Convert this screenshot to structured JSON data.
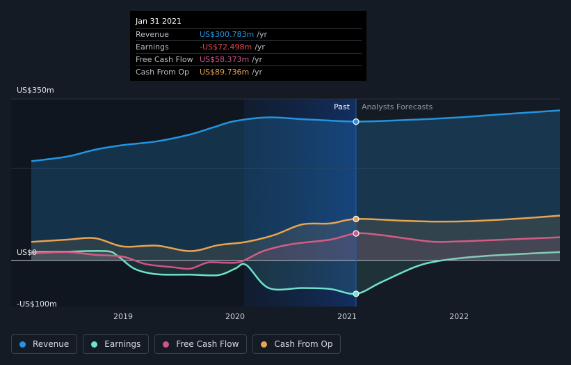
{
  "chart_data": {
    "type": "line",
    "title": "",
    "y_axis": {
      "ticks": [
        "US$350m",
        "US$0",
        "-US$100m"
      ],
      "ylim": [
        -100,
        350
      ]
    },
    "x_axis": {
      "ticks": [
        {
          "label": "2019",
          "x": 2019
        },
        {
          "label": "2020",
          "x": 2020
        },
        {
          "label": "2021",
          "x": 2021
        },
        {
          "label": "2022",
          "x": 2022
        }
      ],
      "xlim": [
        2018.0,
        2022.9
      ]
    },
    "divider_x": 2021.08,
    "highlight_start": 2020.08,
    "labels": {
      "past": "Past",
      "forecast": "Analysts Forecasts"
    },
    "series": [
      {
        "name": "Revenue",
        "color": "#2394df",
        "x": [
          2018.18,
          2018.5,
          2018.75,
          2019.0,
          2019.3,
          2019.6,
          2019.8,
          2020.0,
          2020.3,
          2020.6,
          2020.85,
          2021.08,
          2021.3,
          2021.6,
          2022.0,
          2022.4,
          2022.9
        ],
        "values": [
          215,
          225,
          240,
          250,
          258,
          273,
          288,
          302,
          310,
          306,
          303,
          300.783,
          302,
          305,
          310,
          317,
          325
        ]
      },
      {
        "name": "Earnings",
        "color": "#6ee2cc",
        "x": [
          2018.18,
          2018.5,
          2018.85,
          2018.95,
          2019.1,
          2019.3,
          2019.6,
          2019.85,
          2020.0,
          2020.1,
          2020.3,
          2020.6,
          2020.85,
          2021.08,
          2021.3,
          2021.6,
          2021.8,
          2022.1,
          2022.4,
          2022.9
        ],
        "values": [
          18,
          19,
          20,
          10,
          -18,
          -30,
          -31,
          -32,
          -18,
          -10,
          -60,
          -60,
          -62,
          -72.498,
          -48,
          -15,
          -2,
          7,
          12,
          18
        ]
      },
      {
        "name": "Free Cash Flow",
        "color": "#d1538b",
        "x": [
          2018.18,
          2018.5,
          2018.75,
          2019.0,
          2019.2,
          2019.45,
          2019.6,
          2019.75,
          2019.9,
          2020.05,
          2020.25,
          2020.5,
          2020.85,
          2021.08,
          2021.3,
          2021.6,
          2021.8,
          2022.1,
          2022.5,
          2022.9
        ],
        "values": [
          15,
          18,
          12,
          8,
          -8,
          -15,
          -18,
          -5,
          -5,
          -3,
          20,
          35,
          45,
          58.373,
          55,
          45,
          40,
          42,
          46,
          50
        ]
      },
      {
        "name": "Cash From Op",
        "color": "#e8a450",
        "x": [
          2018.18,
          2018.5,
          2018.75,
          2019.0,
          2019.3,
          2019.6,
          2019.85,
          2020.1,
          2020.35,
          2020.6,
          2020.85,
          2021.08,
          2021.5,
          2021.8,
          2022.1,
          2022.5,
          2022.9
        ],
        "values": [
          40,
          45,
          48,
          30,
          32,
          20,
          33,
          40,
          55,
          78,
          80,
          89.736,
          86,
          84,
          85,
          90,
          97
        ]
      }
    ],
    "markers": [
      {
        "series": "Revenue",
        "x": 2021.08,
        "value": 300.783
      },
      {
        "series": "Earnings",
        "x": 2021.08,
        "value": -72.498
      },
      {
        "series": "Free Cash Flow",
        "x": 2021.08,
        "value": 58.373
      },
      {
        "series": "Cash From Op",
        "x": 2021.08,
        "value": 89.736
      }
    ]
  },
  "tooltip": {
    "date": "Jan 31 2021",
    "rows": [
      {
        "label": "Revenue",
        "value": "US$300.783m",
        "unit": "/yr",
        "color": "#2394df"
      },
      {
        "label": "Earnings",
        "value": "-US$72.498m",
        "unit": "/yr",
        "color": "#e5484d"
      },
      {
        "label": "Free Cash Flow",
        "value": "US$58.373m",
        "unit": "/yr",
        "color": "#d1538b"
      },
      {
        "label": "Cash From Op",
        "value": "US$89.736m",
        "unit": "/yr",
        "color": "#e8a450"
      }
    ]
  },
  "legend": [
    {
      "label": "Revenue",
      "color": "#2394df"
    },
    {
      "label": "Earnings",
      "color": "#6ee2cc"
    },
    {
      "label": "Free Cash Flow",
      "color": "#d1538b"
    },
    {
      "label": "Cash From Op",
      "color": "#e8a450"
    }
  ]
}
